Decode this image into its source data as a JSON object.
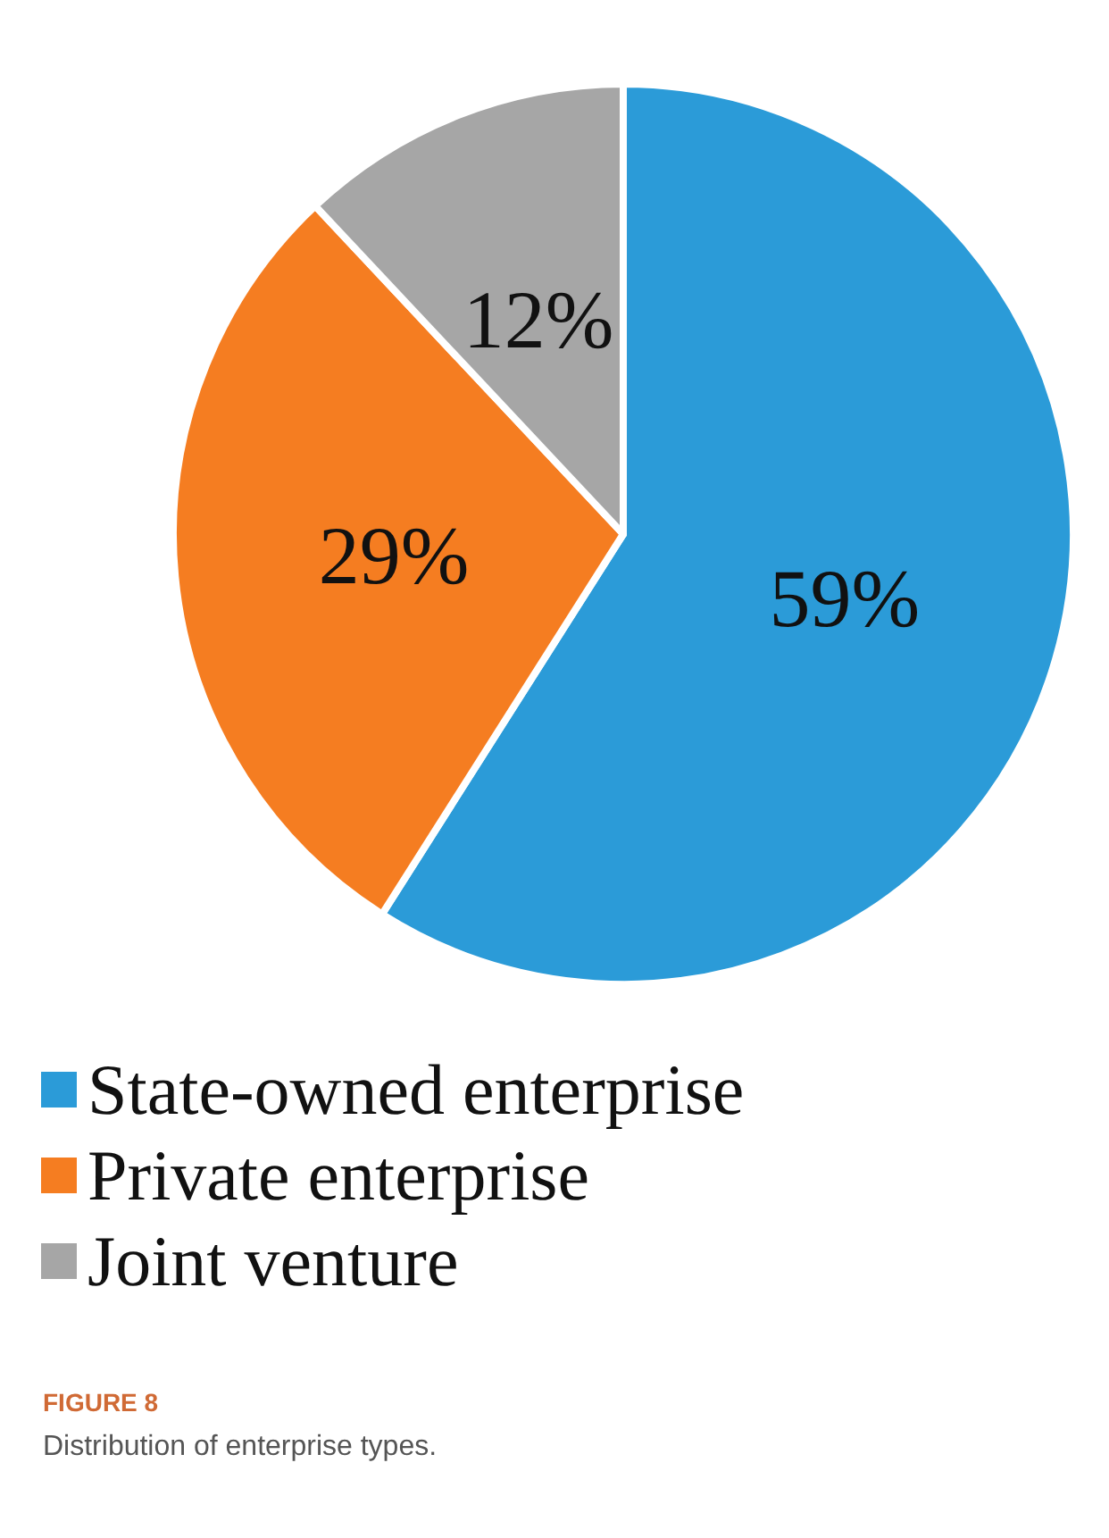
{
  "chart_data": {
    "type": "pie",
    "categories": [
      "State-owned enterprise",
      "Private enterprise",
      "Joint venture"
    ],
    "values": [
      59,
      29,
      12
    ],
    "value_labels": [
      "59%",
      "29%",
      "12%"
    ],
    "colors": [
      "#2b9bd8",
      "#f57d21",
      "#a6a6a6"
    ],
    "legend": "bottom",
    "annotations": [
      "FIGURE 8",
      "Distribution of enterprise types."
    ]
  }
}
